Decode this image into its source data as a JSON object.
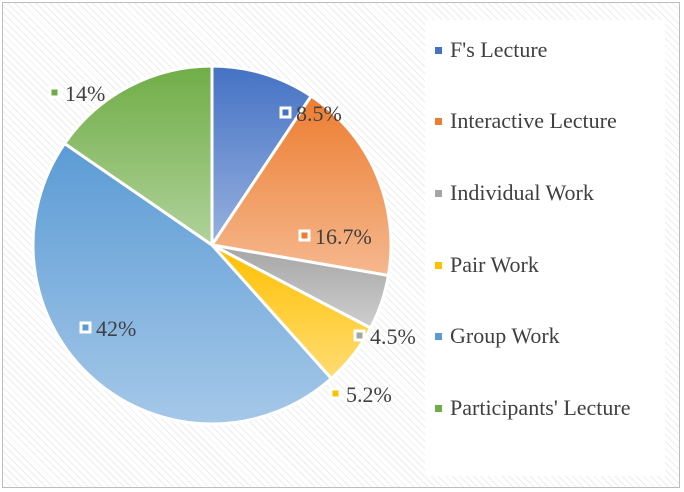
{
  "chart_data": {
    "type": "pie",
    "title": "",
    "slices": [
      {
        "label": "F's Lecture",
        "value": 8.5,
        "display": "8.5%",
        "color": "#4472C4"
      },
      {
        "label": "Interactive Lecture",
        "value": 16.7,
        "display": "16.7%",
        "color": "#ED7D31"
      },
      {
        "label": "Individual Work",
        "value": 4.5,
        "display": "4.5%",
        "color": "#A5A5A5"
      },
      {
        "label": "Pair Work",
        "value": 5.2,
        "display": "5.2%",
        "color": "#FFC000"
      },
      {
        "label": "Group Work",
        "value": 42,
        "display": "42%",
        "color": "#5B9BD5"
      },
      {
        "label": "Participants' Lecture",
        "value": 14,
        "display": "14%",
        "color": "#70AD47"
      }
    ],
    "legend_position": "right"
  }
}
